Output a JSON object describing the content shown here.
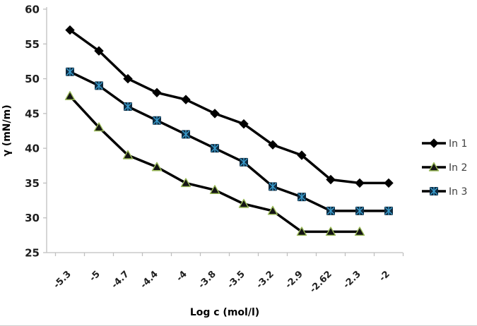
{
  "chart_data": {
    "type": "line",
    "title": "",
    "xlabel": "Log c (mol/l)",
    "ylabel": "γ (mN/m)",
    "categories": [
      "-5.3",
      "-5",
      "-4.7",
      "-4.4",
      "-4",
      "-3.8",
      "-3.5",
      "-3.2",
      "-2.9",
      "-2.62",
      "-2.3",
      "-2"
    ],
    "series": [
      {
        "name": "In 1",
        "marker": "diamond",
        "line_color": "#000000",
        "marker_fill": "#000000",
        "marker_stroke": "#000000",
        "values": [
          57,
          54,
          50,
          48,
          47,
          45,
          43.5,
          40.5,
          39,
          35.5,
          35,
          35
        ]
      },
      {
        "name": "In 2",
        "marker": "triangle",
        "line_color": "#000000",
        "marker_fill": "#141414",
        "marker_stroke": "#9bbb59",
        "values": [
          47.5,
          43,
          39,
          37.3,
          35,
          34,
          32,
          31,
          28,
          28,
          28,
          null
        ]
      },
      {
        "name": "In 3",
        "marker": "square-x",
        "line_color": "#000000",
        "marker_fill": "#0f2a3f",
        "marker_stroke": "#3a9ecf",
        "values": [
          51,
          49,
          46,
          44,
          42,
          40,
          38,
          34.5,
          33,
          31,
          31,
          31
        ]
      }
    ],
    "ylim": [
      25,
      60
    ],
    "ytick_step": 5,
    "ytick_labels": [
      "25",
      "30",
      "35",
      "40",
      "45",
      "50",
      "55",
      "60"
    ],
    "grid": false,
    "legend_position": "right",
    "legend_items": [
      "In 1",
      "In 2",
      "In 3"
    ],
    "colors": {
      "axis_line": "#bfbfbf",
      "tick_label": "#1f1f1f",
      "axis_title": "#000000",
      "legend_text": "#3f3f3f",
      "background": "#ffffff"
    }
  }
}
